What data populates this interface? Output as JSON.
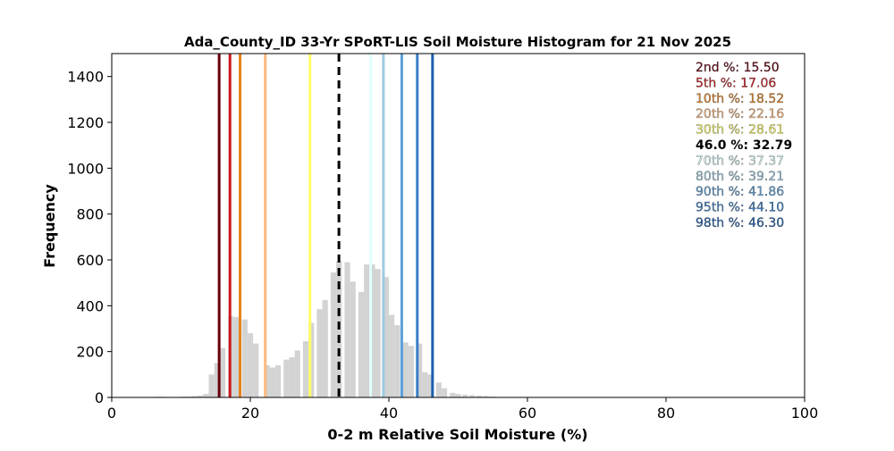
{
  "chart_data": {
    "type": "bar",
    "title": "Ada_County_ID 33-Yr SPoRT-LIS Soil Moisture Histogram for 21 Nov 2025",
    "xlabel": "0-2 m Relative Soil Moisture (%)",
    "ylabel": "Frequency",
    "xlim": [
      0,
      100
    ],
    "ylim": [
      0,
      1500
    ],
    "xticks": [
      0,
      20,
      40,
      60,
      80,
      100
    ],
    "yticks": [
      0,
      200,
      400,
      600,
      800,
      1000,
      1200,
      1400
    ],
    "grid": false,
    "bar_color": "#d3d3d3",
    "bin_width": 0.8,
    "bins": [
      {
        "x": 5.2,
        "y": 2
      },
      {
        "x": 6.0,
        "y": 2
      },
      {
        "x": 7.0,
        "y": 3
      },
      {
        "x": 8.0,
        "y": 2
      },
      {
        "x": 10.4,
        "y": 3
      },
      {
        "x": 11.2,
        "y": 4
      },
      {
        "x": 12.0,
        "y": 6
      },
      {
        "x": 12.8,
        "y": 8
      },
      {
        "x": 13.6,
        "y": 15
      },
      {
        "x": 14.4,
        "y": 100
      },
      {
        "x": 15.2,
        "y": 150
      },
      {
        "x": 16.0,
        "y": 215
      },
      {
        "x": 17.2,
        "y": 355
      },
      {
        "x": 18.0,
        "y": 350
      },
      {
        "x": 19.2,
        "y": 340
      },
      {
        "x": 20.0,
        "y": 280
      },
      {
        "x": 20.8,
        "y": 235
      },
      {
        "x": 22.4,
        "y": 140
      },
      {
        "x": 23.2,
        "y": 130
      },
      {
        "x": 24.0,
        "y": 140
      },
      {
        "x": 25.2,
        "y": 165
      },
      {
        "x": 26.0,
        "y": 175
      },
      {
        "x": 26.8,
        "y": 205
      },
      {
        "x": 28.0,
        "y": 245
      },
      {
        "x": 28.8,
        "y": 325
      },
      {
        "x": 30.0,
        "y": 385
      },
      {
        "x": 30.8,
        "y": 425
      },
      {
        "x": 32.0,
        "y": 545
      },
      {
        "x": 32.8,
        "y": 595
      },
      {
        "x": 34.0,
        "y": 590
      },
      {
        "x": 34.8,
        "y": 505
      },
      {
        "x": 36.0,
        "y": 460
      },
      {
        "x": 36.8,
        "y": 580
      },
      {
        "x": 37.6,
        "y": 580
      },
      {
        "x": 38.4,
        "y": 560
      },
      {
        "x": 39.6,
        "y": 525
      },
      {
        "x": 40.4,
        "y": 360
      },
      {
        "x": 41.2,
        "y": 315
      },
      {
        "x": 42.4,
        "y": 240
      },
      {
        "x": 43.2,
        "y": 225
      },
      {
        "x": 44.4,
        "y": 235
      },
      {
        "x": 45.2,
        "y": 110
      },
      {
        "x": 46.0,
        "y": 100
      },
      {
        "x": 47.2,
        "y": 65
      },
      {
        "x": 48.0,
        "y": 40
      },
      {
        "x": 49.2,
        "y": 20
      },
      {
        "x": 50.0,
        "y": 15
      },
      {
        "x": 51.0,
        "y": 12
      },
      {
        "x": 52.0,
        "y": 10
      },
      {
        "x": 53.0,
        "y": 8
      },
      {
        "x": 54.0,
        "y": 6
      },
      {
        "x": 55.0,
        "y": 4
      }
    ],
    "percentile_lines": [
      {
        "label": "2nd %",
        "value": 15.5,
        "value_text": "15.50",
        "color": "#67000d",
        "dashed": false
      },
      {
        "label": "5th %",
        "value": 17.06,
        "value_text": "17.06",
        "color": "#cb181d",
        "dashed": false
      },
      {
        "label": "10th %",
        "value": 18.52,
        "value_text": "18.52",
        "color": "#e6821e",
        "dashed": false
      },
      {
        "label": "20th %",
        "value": 22.16,
        "value_text": "22.16",
        "color": "#fdb97d",
        "dashed": false
      },
      {
        "label": "30th %",
        "value": 28.61,
        "value_text": "28.61",
        "color": "#ffff66",
        "dashed": false
      },
      {
        "label": "46.0 %",
        "value": 32.79,
        "value_text": "32.79",
        "color": "#000000",
        "dashed": true
      },
      {
        "label": "70th %",
        "value": 37.37,
        "value_text": "37.37",
        "color": "#e0ffff",
        "dashed": false
      },
      {
        "label": "80th %",
        "value": 39.21,
        "value_text": "39.21",
        "color": "#9ecae1",
        "dashed": false
      },
      {
        "label": "90th %",
        "value": 41.86,
        "value_text": "41.86",
        "color": "#5b9fd9",
        "dashed": false
      },
      {
        "label": "95th %",
        "value": 44.1,
        "value_text": "44.10",
        "color": "#3a7fc8",
        "dashed": false
      },
      {
        "label": "98th %",
        "value": 46.3,
        "value_text": "46.30",
        "color": "#1f5fae",
        "dashed": false
      }
    ]
  }
}
